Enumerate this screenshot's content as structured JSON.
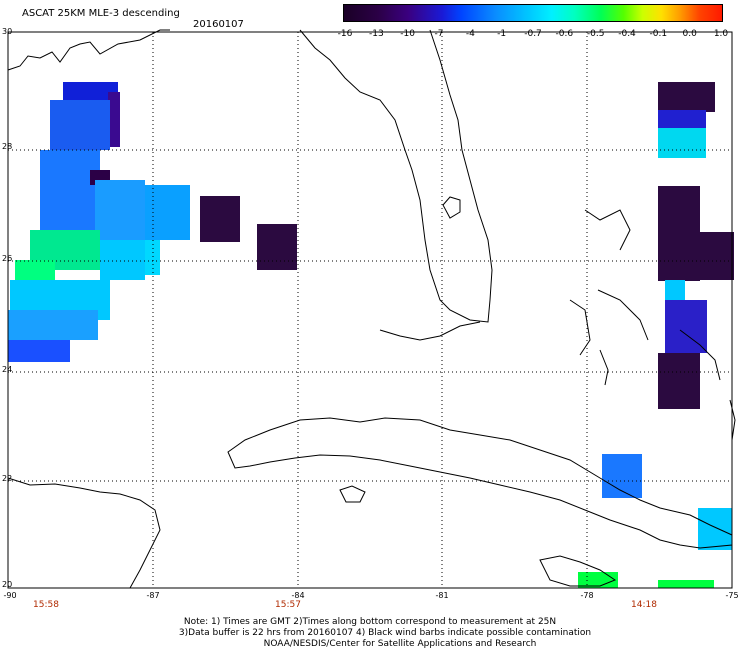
{
  "header": {
    "title": "ASCAT 25KM MLE-3 descending",
    "date": "20160107"
  },
  "colorbar": {
    "ticks": [
      "-16",
      "-13",
      "-10",
      "-7",
      "-4",
      "-1",
      "-0.7",
      "-0.6",
      "-0.5",
      "-0.4",
      "-0.1",
      "0.0",
      "1.0"
    ]
  },
  "axes": {
    "lat_labels": [
      "30",
      "28",
      "26",
      "24",
      "22",
      "20"
    ],
    "lon_labels": [
      "-90",
      "-87",
      "-84",
      "-81",
      "-78",
      "-75"
    ],
    "time_labels": [
      "15:58",
      "15:57",
      "14:18"
    ]
  },
  "notes": {
    "line1": "Note: 1) Times are GMT 2)Times along bottom correspond to measurement at 25N",
    "line2": "3)Data buffer is 22 hrs from 20160107 4) Black wind barbs indicate possible contamination",
    "line3": "NOAA/NESDIS/Center for Satellite Applications and Research"
  },
  "map": {
    "extent": {
      "lon_min": -90,
      "lon_max": -75,
      "lat_min": 20,
      "lat_max": 30
    },
    "grid": "dotted",
    "colors": {
      "coast": "#000000",
      "grid": "#000000",
      "time_text": "#b02a00"
    }
  }
}
